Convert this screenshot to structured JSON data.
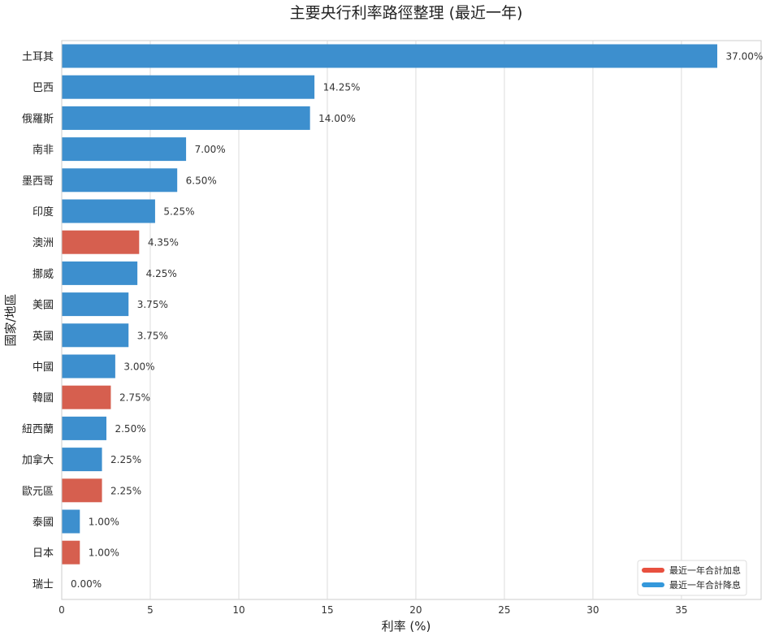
{
  "chart_data": {
    "type": "bar",
    "orientation": "horizontal",
    "title": "主要央行利率路徑整理 (最近一年)",
    "xlabel": "利率 (%)",
    "ylabel": "國家/地區",
    "xlim": [
      0,
      39.5
    ],
    "xticks": [
      0,
      5,
      10,
      15,
      20,
      25,
      30,
      35
    ],
    "grid": "vertical",
    "legend_position": "bottom-right",
    "series_colors": {
      "hike": "#d65f4f",
      "cut": "#3d8fce"
    },
    "legend": [
      {
        "key": "hike",
        "label": "最近一年合計加息",
        "color": "#e8503f"
      },
      {
        "key": "cut",
        "label": "最近一年合計降息",
        "color": "#3498db"
      }
    ],
    "categories": [
      "土耳其",
      "巴西",
      "俄羅斯",
      "南非",
      "墨西哥",
      "印度",
      "澳洲",
      "挪威",
      "美國",
      "英國",
      "中國",
      "韓國",
      "紐西蘭",
      "加拿大",
      "歐元區",
      "泰國",
      "日本",
      "瑞士"
    ],
    "values": [
      37.0,
      14.25,
      14.0,
      7.0,
      6.5,
      5.25,
      4.35,
      4.25,
      3.75,
      3.75,
      3.0,
      2.75,
      2.5,
      2.25,
      2.25,
      1.0,
      1.0,
      0.0
    ],
    "value_labels": [
      "37.00%",
      "14.25%",
      "14.00%",
      "7.00%",
      "6.50%",
      "5.25%",
      "4.35%",
      "4.25%",
      "3.75%",
      "3.75%",
      "3.00%",
      "2.75%",
      "2.50%",
      "2.25%",
      "2.25%",
      "1.00%",
      "1.00%",
      "0.00%"
    ],
    "direction": [
      "cut",
      "cut",
      "cut",
      "cut",
      "cut",
      "cut",
      "hike",
      "cut",
      "cut",
      "cut",
      "cut",
      "hike",
      "cut",
      "cut",
      "hike",
      "cut",
      "hike",
      "cut"
    ]
  }
}
